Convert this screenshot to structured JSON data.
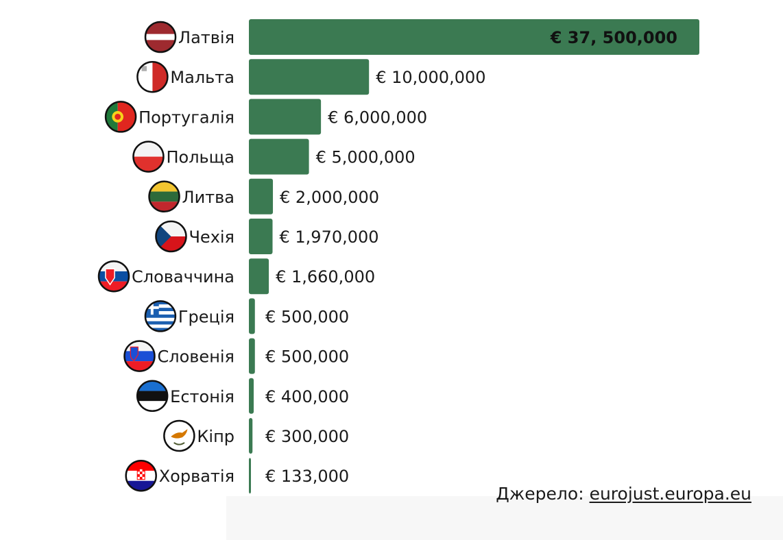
{
  "colors": {
    "bar": "#3b7a52",
    "text": "#1a1a1a",
    "top_label": "#111111"
  },
  "chart_data": {
    "type": "bar",
    "orientation": "horizontal",
    "categories": [
      "Латвія",
      "Мальта",
      "Португалія",
      "Польща",
      "Литва",
      "Чехія",
      "Словаччина",
      "Греція",
      "Словенія",
      "Естонія",
      "Кіпр",
      "Хорватія"
    ],
    "values": [
      37500000,
      10000000,
      6000000,
      5000000,
      2000000,
      1970000,
      1660000,
      500000,
      500000,
      400000,
      300000,
      133000
    ],
    "value_labels": [
      "€ 37, 500,000",
      "€ 10,000,000",
      "€ 6,000,000",
      "€ 5,000,000",
      "€ 2,000,000",
      "€ 1,970,000",
      "€ 1,660,000",
      "€ 500,000",
      "€ 500,000",
      "€ 400,000",
      "€ 300,000",
      "€ 133,000"
    ],
    "flag_icons": [
      "latvia-flag-icon",
      "malta-flag-icon",
      "portugal-flag-icon",
      "poland-flag-icon",
      "lithuania-flag-icon",
      "czechia-flag-icon",
      "slovakia-flag-icon",
      "greece-flag-icon",
      "slovenia-flag-icon",
      "estonia-flag-icon",
      "cyprus-flag-icon",
      "croatia-flag-icon"
    ],
    "xlim": [
      0,
      37500000
    ],
    "grid": false,
    "legend": "none"
  },
  "source": {
    "prefix": "Джерело: ",
    "link_text": "eurojust.europa.eu"
  }
}
